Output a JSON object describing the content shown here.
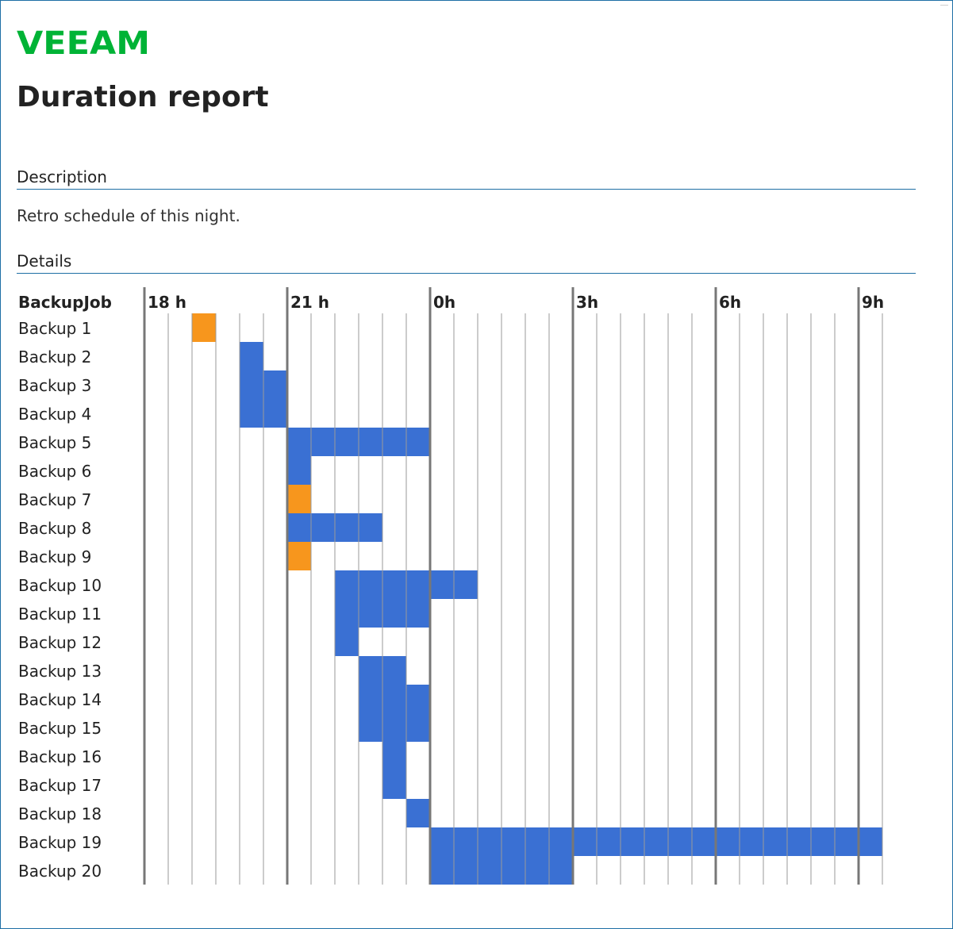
{
  "brand": {
    "logo_text": "VEEAM",
    "logo_color": "#00b336"
  },
  "page": {
    "title": "Duration report"
  },
  "description": {
    "heading": "Description",
    "text": "Retro schedule of this night."
  },
  "details": {
    "heading": "Details"
  },
  "colors": {
    "success": "#3a70d3",
    "warning": "#f7961d",
    "rule": "#1e6fa5",
    "grid_major": "#777777",
    "grid_minor": "#9a9a9a"
  },
  "chart_data": {
    "type": "bar",
    "subtype": "gantt-timeline",
    "column_header": "BackupJob",
    "x_unit": "hours (time of day)",
    "x_range": [
      18,
      9.5
    ],
    "x_step_minor_minutes": 30,
    "x_ticks": [
      {
        "hour": 18,
        "label": "18 h"
      },
      {
        "hour": 21,
        "label": "21 h"
      },
      {
        "hour": 0,
        "label": "0h"
      },
      {
        "hour": 3,
        "label": "3h"
      },
      {
        "hour": 6,
        "label": "6h"
      },
      {
        "hour": 9,
        "label": "9h"
      }
    ],
    "grid": true,
    "legend": "none",
    "jobs": [
      {
        "name": "Backup 1",
        "start": "19:00",
        "end": "19:30",
        "status": "warning"
      },
      {
        "name": "Backup 2",
        "start": "20:00",
        "end": "20:30",
        "status": "success"
      },
      {
        "name": "Backup 3",
        "start": "20:00",
        "end": "21:00",
        "status": "success"
      },
      {
        "name": "Backup 4",
        "start": "20:00",
        "end": "21:00",
        "status": "success"
      },
      {
        "name": "Backup 5",
        "start": "21:00",
        "end": "00:00",
        "status": "success"
      },
      {
        "name": "Backup 6",
        "start": "21:00",
        "end": "21:30",
        "status": "success"
      },
      {
        "name": "Backup 7",
        "start": "21:00",
        "end": "21:30",
        "status": "warning"
      },
      {
        "name": "Backup 8",
        "start": "21:00",
        "end": "23:00",
        "status": "success"
      },
      {
        "name": "Backup 9",
        "start": "21:00",
        "end": "21:30",
        "status": "warning"
      },
      {
        "name": "Backup 10",
        "start": "22:00",
        "end": "01:00",
        "status": "success"
      },
      {
        "name": "Backup 11",
        "start": "22:00",
        "end": "00:00",
        "status": "success"
      },
      {
        "name": "Backup 12",
        "start": "22:00",
        "end": "22:30",
        "status": "success"
      },
      {
        "name": "Backup 13",
        "start": "22:30",
        "end": "23:30",
        "status": "success"
      },
      {
        "name": "Backup 14",
        "start": "22:30",
        "end": "00:00",
        "status": "success"
      },
      {
        "name": "Backup 15",
        "start": "22:30",
        "end": "00:00",
        "status": "success"
      },
      {
        "name": "Backup 16",
        "start": "23:00",
        "end": "23:30",
        "status": "success"
      },
      {
        "name": "Backup 17",
        "start": "23:00",
        "end": "23:30",
        "status": "success"
      },
      {
        "name": "Backup 18",
        "start": "23:30",
        "end": "00:00",
        "status": "success"
      },
      {
        "name": "Backup 19",
        "start": "00:00",
        "end": "09:30",
        "status": "success"
      },
      {
        "name": "Backup 20",
        "start": "00:00",
        "end": "03:00",
        "status": "success"
      }
    ]
  }
}
